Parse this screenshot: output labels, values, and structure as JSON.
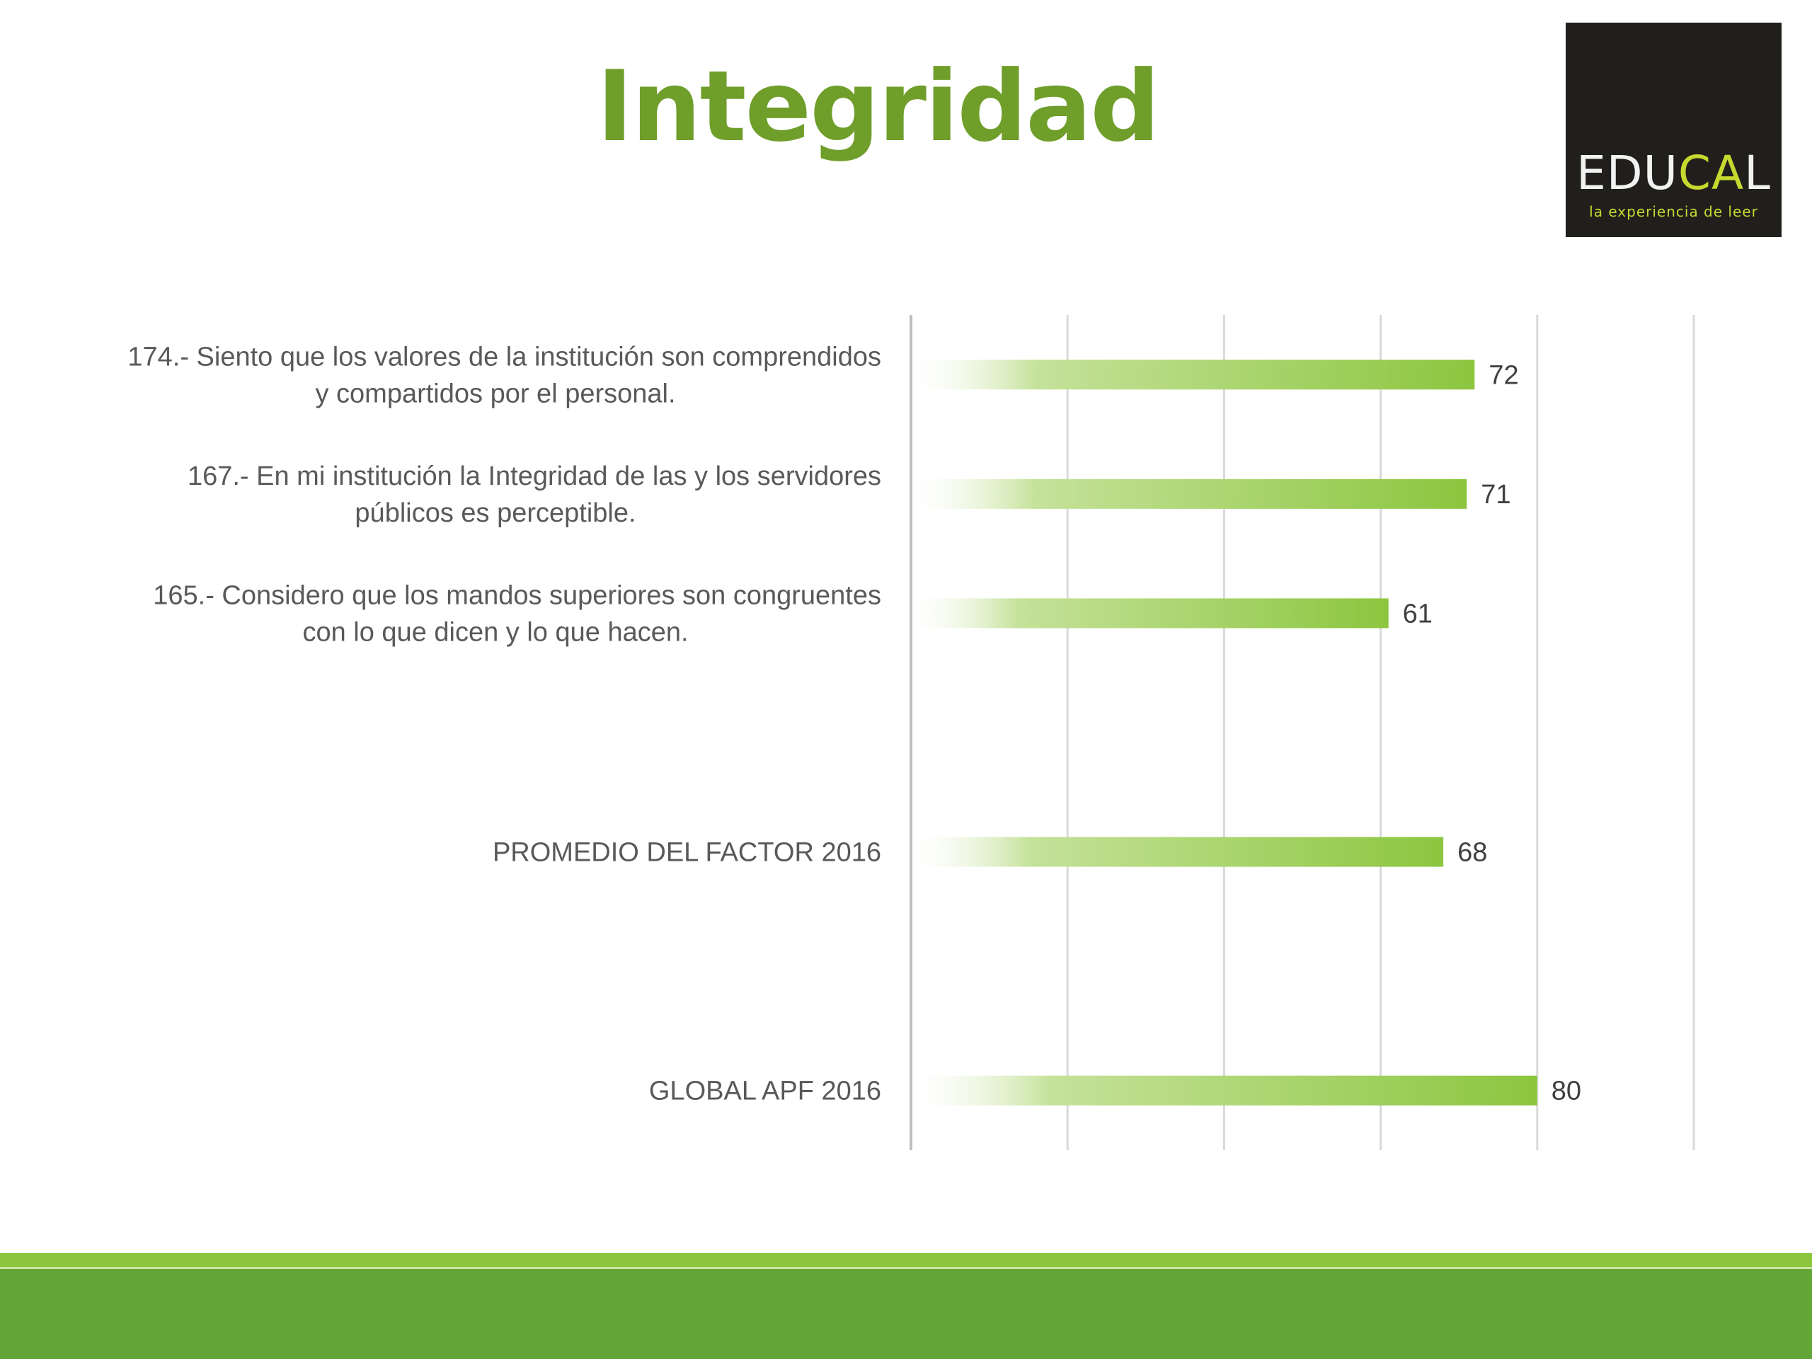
{
  "title": "Integridad",
  "logo": {
    "main_left": "EDU",
    "main_accent": "CA",
    "main_right": "L",
    "tagline": "la experiencia de leer"
  },
  "colors": {
    "title": "#6f9e2a",
    "bar_end": "#8cc63f",
    "bar_start": "#ffffff",
    "footer": "#64a537",
    "footer_light": "#8cc63f"
  },
  "chart_data": {
    "type": "bar",
    "orientation": "horizontal",
    "categories": [
      [
        "174.- Siento que los valores de la institución son comprendidos",
        "y compartidos por el personal."
      ],
      [
        "167.- En mi institución la Integridad de las y los servidores",
        "públicos es perceptible."
      ],
      [
        "165.- Considero que los mandos superiores son congruentes",
        "con lo que dicen y lo que hacen."
      ],
      [],
      [
        "PROMEDIO DEL FACTOR   2016"
      ],
      [],
      [
        "GLOBAL APF   2016"
      ]
    ],
    "values": [
      72,
      71,
      61,
      null,
      68,
      null,
      80
    ],
    "xlim": [
      0,
      100
    ],
    "gridlines_x": [
      0,
      20,
      40,
      60,
      80,
      100
    ],
    "grid": true,
    "legend": "none"
  }
}
